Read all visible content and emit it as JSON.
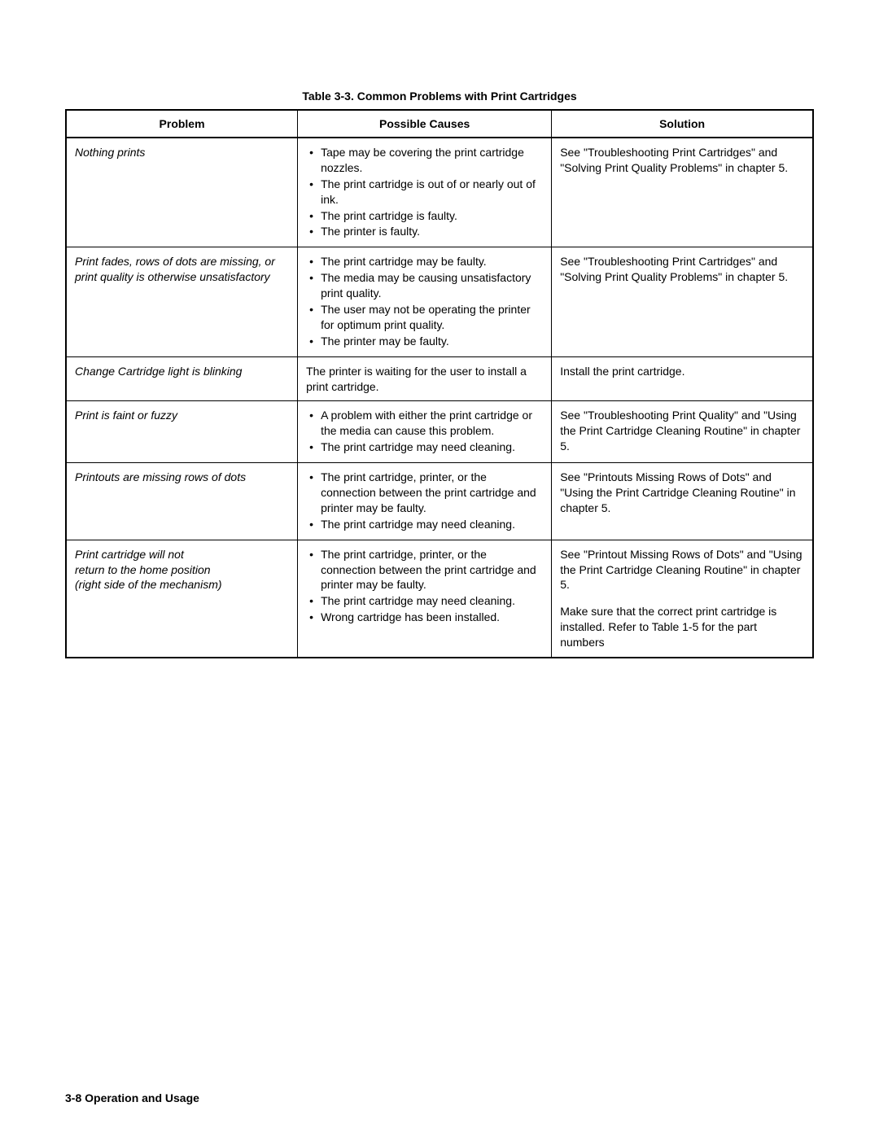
{
  "table": {
    "title": "Table 3-3.  Common Problems with Print Cartridges",
    "columns": [
      "Problem",
      "Possible Causes",
      "Solution"
    ],
    "rows": [
      {
        "problem": "Nothing prints",
        "causes": [
          "Tape may be covering the print cartridge nozzles.",
          "The print cartridge is out of or nearly out of ink.",
          "The print cartridge is faulty.",
          "The printer is faulty."
        ],
        "causes_type": "list",
        "solutions": [
          "See \"Troubleshooting Print Cartridges\" and \"Solving Print Quality Problems\" in chapter 5."
        ]
      },
      {
        "problem": "Print fades, rows of dots are missing, or print quality is otherwise unsatisfactory",
        "causes": [
          "The print cartridge may be faulty.",
          "The media may be causing unsatisfactory print quality.",
          "The user may not be operating the printer for optimum print quality.",
          "The printer may be faulty."
        ],
        "causes_type": "list",
        "solutions": [
          "See \"Troubleshooting Print Cartridges\" and \"Solving Print Quality Problems\" in chapter 5."
        ]
      },
      {
        "problem": "Change Cartridge light is blinking",
        "causes": [
          "The printer is waiting for the user to install a print cartridge."
        ],
        "causes_type": "plain",
        "solutions": [
          "Install the print cartridge."
        ]
      },
      {
        "problem": "Print is faint or fuzzy",
        "causes": [
          "A problem with either the print cartridge or the media can cause this problem.",
          "The print cartridge may need cleaning."
        ],
        "causes_type": "list",
        "solutions": [
          "See \"Troubleshooting Print Quality\" and \"Using the Print Cartridge Cleaning Routine\" in chapter 5."
        ]
      },
      {
        "problem": "Printouts are missing rows of dots",
        "causes": [
          "The print cartridge, printer, or the connection between the print cartridge and printer may be faulty.",
          "The print cartridge may need cleaning."
        ],
        "causes_type": "list",
        "solutions": [
          "See \"Printouts Missing Rows of Dots\" and \"Using the Print Cartridge Cleaning Routine\" in chapter 5."
        ]
      },
      {
        "problem": "Print cartridge will not\nreturn to the home position\n(right side of the mechanism)",
        "causes": [
          "The print cartridge, printer, or the connection between the print cartridge and printer may be faulty.",
          "The print cartridge may need cleaning.",
          "Wrong cartridge has been installed."
        ],
        "causes_type": "list",
        "solutions": [
          "See \"Printout Missing Rows of Dots\" and \"Using the Print Cartridge Cleaning Routine\" in chapter 5.",
          "Make sure that the correct print cartridge is installed. Refer to Table 1-5 for the part numbers"
        ]
      }
    ]
  },
  "footer": "3-8    Operation and Usage"
}
